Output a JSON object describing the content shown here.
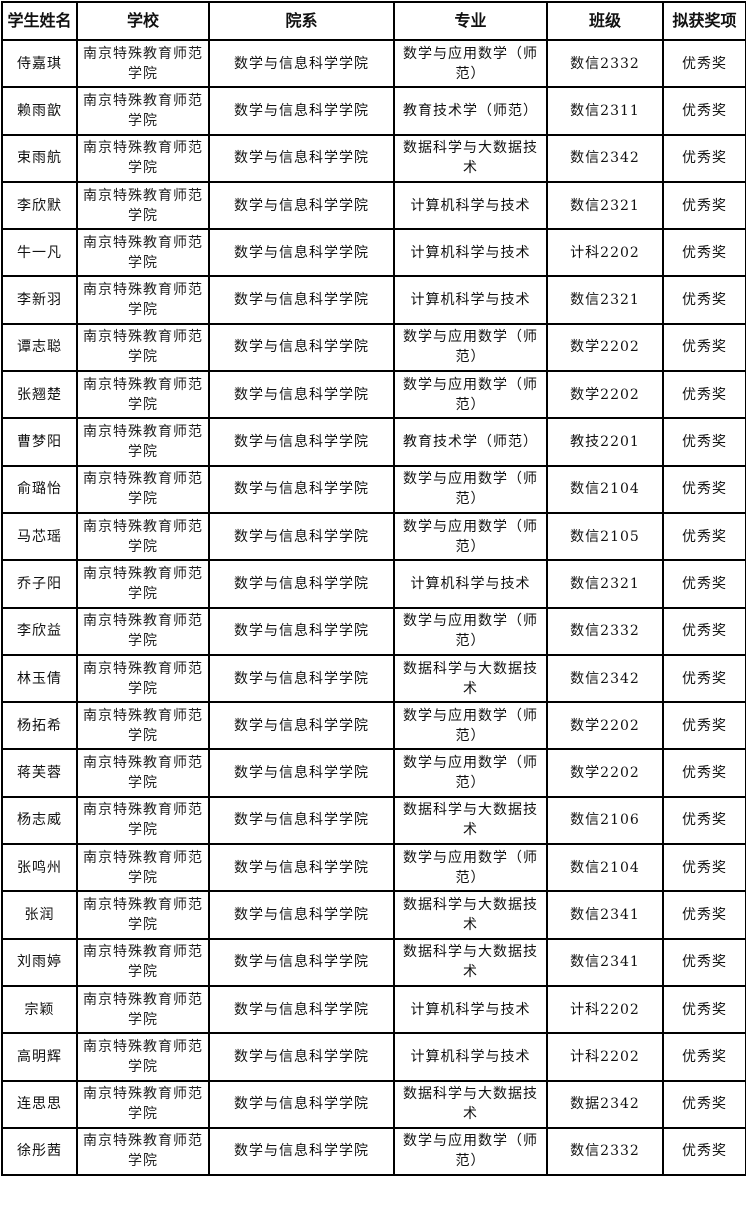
{
  "headers": [
    "学生姓名",
    "学校",
    "院系",
    "专业",
    "班级",
    "拟获奖项"
  ],
  "rows": [
    [
      "侍嘉琪",
      "南京特殊教育师范学院",
      "数学与信息科学学院",
      "数学与应用数学（师范）",
      "数信2332",
      "优秀奖"
    ],
    [
      "赖雨歆",
      "南京特殊教育师范学院",
      "数学与信息科学学院",
      "教育技术学（师范）",
      "数信2311",
      "优秀奖"
    ],
    [
      "束雨航",
      "南京特殊教育师范学院",
      "数学与信息科学学院",
      "数据科学与大数据技术",
      "数信2342",
      "优秀奖"
    ],
    [
      "李欣默",
      "南京特殊教育师范学院",
      "数学与信息科学学院",
      "计算机科学与技术",
      "数信2321",
      "优秀奖"
    ],
    [
      "牛一凡",
      "南京特殊教育师范学院",
      "数学与信息科学学院",
      "计算机科学与技术",
      "计科2202",
      "优秀奖"
    ],
    [
      "李新羽",
      "南京特殊教育师范学院",
      "数学与信息科学学院",
      "计算机科学与技术",
      "数信2321",
      "优秀奖"
    ],
    [
      "谭志聪",
      "南京特殊教育师范学院",
      "数学与信息科学学院",
      "数学与应用数学（师范）",
      "数学2202",
      "优秀奖"
    ],
    [
      "张翘楚",
      "南京特殊教育师范学院",
      "数学与信息科学学院",
      "数学与应用数学（师范）",
      "数学2202",
      "优秀奖"
    ],
    [
      "曹梦阳",
      "南京特殊教育师范学院",
      "数学与信息科学学院",
      "教育技术学（师范）",
      "教技2201",
      "优秀奖"
    ],
    [
      "俞璐怡",
      "南京特殊教育师范学院",
      "数学与信息科学学院",
      "数学与应用数学（师范）",
      "数信2104",
      "优秀奖"
    ],
    [
      "马芯瑶",
      "南京特殊教育师范学院",
      "数学与信息科学学院",
      "数学与应用数学（师范）",
      "数信2105",
      "优秀奖"
    ],
    [
      "乔子阳",
      "南京特殊教育师范学院",
      "数学与信息科学学院",
      "计算机科学与技术",
      "数信2321",
      "优秀奖"
    ],
    [
      "李欣益",
      "南京特殊教育师范学院",
      "数学与信息科学学院",
      "数学与应用数学（师范）",
      "数信2332",
      "优秀奖"
    ],
    [
      "林玉倩",
      "南京特殊教育师范学院",
      "数学与信息科学学院",
      "数据科学与大数据技术",
      "数信2342",
      "优秀奖"
    ],
    [
      "杨拓希",
      "南京特殊教育师范学院",
      "数学与信息科学学院",
      "数学与应用数学（师范）",
      "数学2202",
      "优秀奖"
    ],
    [
      "蒋芙蓉",
      "南京特殊教育师范学院",
      "数学与信息科学学院",
      "数学与应用数学（师范）",
      "数学2202",
      "优秀奖"
    ],
    [
      "杨志威",
      "南京特殊教育师范学院",
      "数学与信息科学学院",
      "数据科学与大数据技术",
      "数信2106",
      "优秀奖"
    ],
    [
      "张鸣州",
      "南京特殊教育师范学院",
      "数学与信息科学学院",
      "数学与应用数学（师范）",
      "数信2104",
      "优秀奖"
    ],
    [
      "张润",
      "南京特殊教育师范学院",
      "数学与信息科学学院",
      "数据科学与大数据技术",
      "数信2341",
      "优秀奖"
    ],
    [
      "刘雨婷",
      "南京特殊教育师范学院",
      "数学与信息科学学院",
      "数据科学与大数据技术",
      "数信2341",
      "优秀奖"
    ],
    [
      "宗颖",
      "南京特殊教育师范学院",
      "数学与信息科学学院",
      "计算机科学与技术",
      "计科2202",
      "优秀奖"
    ],
    [
      "高明辉",
      "南京特殊教育师范学院",
      "数学与信息科学学院",
      "计算机科学与技术",
      "计科2202",
      "优秀奖"
    ],
    [
      "连思思",
      "南京特殊教育师范学院",
      "数学与信息科学学院",
      "数据科学与大数据技术",
      "数据2342",
      "优秀奖"
    ],
    [
      "徐彤茜",
      "南京特殊教育师范学院",
      "数学与信息科学学院",
      "数学与应用数学（师范）",
      "数信2332",
      "优秀奖"
    ]
  ]
}
